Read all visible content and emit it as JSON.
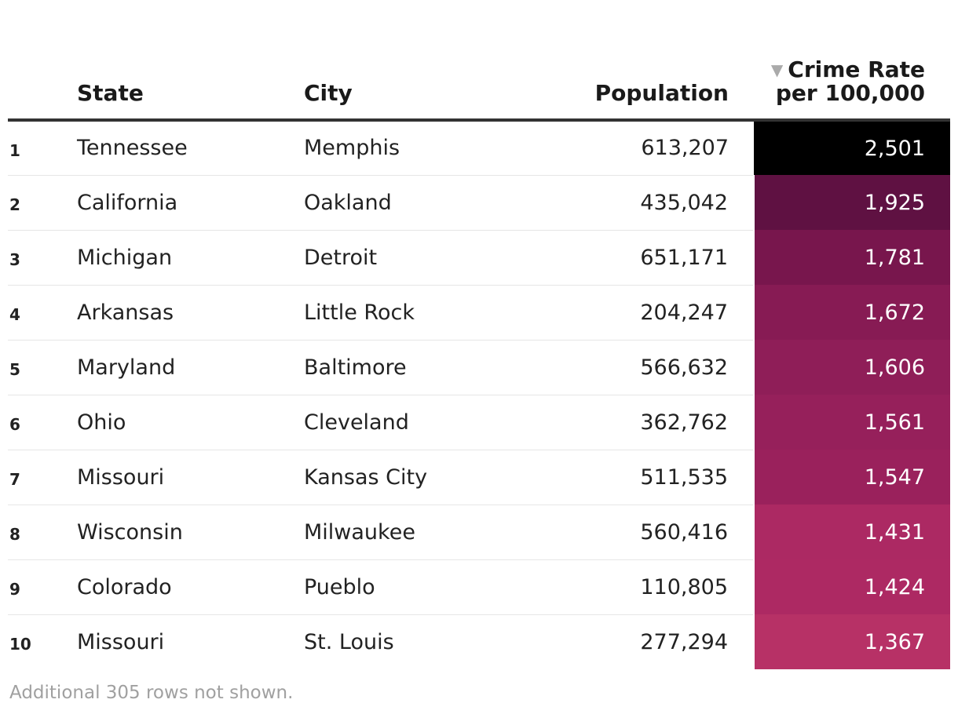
{
  "chart_data": {
    "type": "table",
    "columns": {
      "rank": "",
      "state": "State",
      "city": "City",
      "population": "Population",
      "rate": "Crime Rate per 100,000"
    },
    "sort_column": "rate",
    "sort_direction": "descending",
    "rows": [
      {
        "rank": "1",
        "state": "Tennessee",
        "city": "Memphis",
        "population": "613,207",
        "rate": "2,501",
        "rate_value": 2501,
        "color": "#000000"
      },
      {
        "rank": "2",
        "state": "California",
        "city": "Oakland",
        "population": "435,042",
        "rate": "1,925",
        "rate_value": 1925,
        "color": "#5f1142"
      },
      {
        "rank": "3",
        "state": "Michigan",
        "city": "Detroit",
        "population": "651,171",
        "rate": "1,781",
        "rate_value": 1781,
        "color": "#78164d"
      },
      {
        "rank": "4",
        "state": "Arkansas",
        "city": "Little Rock",
        "population": "204,247",
        "rate": "1,672",
        "rate_value": 1672,
        "color": "#871b54"
      },
      {
        "rank": "5",
        "state": "Maryland",
        "city": "Baltimore",
        "population": "566,632",
        "rate": "1,606",
        "rate_value": 1606,
        "color": "#8f1e58"
      },
      {
        "rank": "6",
        "state": "Ohio",
        "city": "Cleveland",
        "population": "362,762",
        "rate": "1,561",
        "rate_value": 1561,
        "color": "#96205b"
      },
      {
        "rank": "7",
        "state": "Missouri",
        "city": "Kansas City",
        "population": "511,535",
        "rate": "1,547",
        "rate_value": 1547,
        "color": "#9a215c"
      },
      {
        "rank": "8",
        "state": "Wisconsin",
        "city": "Milwaukee",
        "population": "560,416",
        "rate": "1,431",
        "rate_value": 1431,
        "color": "#ac2963"
      },
      {
        "rank": "9",
        "state": "Colorado",
        "city": "Pueblo",
        "population": "110,805",
        "rate": "1,424",
        "rate_value": 1424,
        "color": "#ad2963"
      },
      {
        "rank": "10",
        "state": "Missouri",
        "city": "St. Louis",
        "population": "277,294",
        "rate": "1,367",
        "rate_value": 1367,
        "color": "#b73166"
      }
    ]
  },
  "footnote": "Additional 305 rows not shown.",
  "icons": {
    "sort": "sort-descending-icon"
  }
}
